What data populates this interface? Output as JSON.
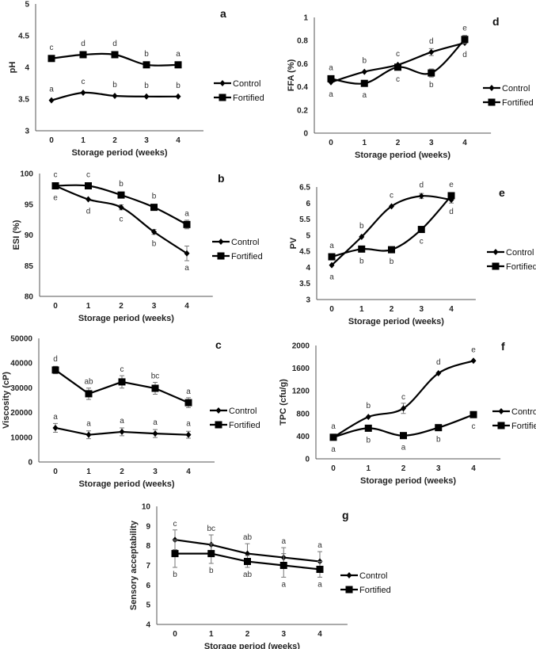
{
  "chart_data": [
    {
      "id": "a",
      "type": "line",
      "panel_label": "a",
      "xlabel": "Storage period (weeks)",
      "ylabel": "pH",
      "x": [
        0,
        1,
        2,
        3,
        4
      ],
      "ylim": [
        3,
        5
      ],
      "yticks": [
        3,
        3.5,
        4,
        4.5,
        5
      ],
      "grid": false,
      "legend": "right",
      "series": [
        {
          "name": "Control",
          "marker": "diamond",
          "values": [
            3.48,
            3.6,
            3.55,
            3.54,
            3.54
          ],
          "errors": [
            0,
            0,
            0,
            0,
            0
          ],
          "letters": [
            "a",
            "c",
            "b",
            "b",
            "b"
          ],
          "letter_pos": [
            "above",
            "above",
            "above",
            "above",
            "above"
          ]
        },
        {
          "name": "Fortified",
          "marker": "square",
          "values": [
            4.14,
            4.2,
            4.2,
            4.04,
            4.04
          ],
          "errors": [
            0,
            0,
            0,
            0,
            0
          ],
          "letters": [
            "c",
            "d",
            "d",
            "b",
            "a"
          ],
          "letter_pos": [
            "above",
            "above",
            "above",
            "above",
            "above"
          ]
        }
      ]
    },
    {
      "id": "b",
      "type": "line",
      "panel_label": "b",
      "xlabel": "Storage period (weeks)",
      "ylabel": "ESI (%)",
      "x": [
        0,
        1,
        2,
        3,
        4
      ],
      "ylim": [
        80,
        100
      ],
      "yticks": [
        80,
        85,
        90,
        95,
        100
      ],
      "grid": false,
      "legend": "right",
      "series": [
        {
          "name": "Control",
          "marker": "diamond",
          "values": [
            98,
            95.8,
            94.5,
            90.5,
            87
          ],
          "errors": [
            0,
            0,
            0.4,
            0.4,
            1.2
          ],
          "letters": [
            "e",
            "d",
            "c",
            "b",
            "a"
          ],
          "letter_pos": [
            "below",
            "below",
            "below",
            "below",
            "below"
          ]
        },
        {
          "name": "Fortified",
          "marker": "square",
          "values": [
            98,
            98,
            96.5,
            94.5,
            91.7
          ],
          "errors": [
            0,
            0,
            0,
            0,
            0.7
          ],
          "letters": [
            "c",
            "c",
            "b",
            "b",
            "a"
          ],
          "letter_pos": [
            "above",
            "above",
            "above",
            "above",
            "above"
          ]
        }
      ]
    },
    {
      "id": "c",
      "type": "line",
      "panel_label": "c",
      "xlabel": "Storage period (weeks)",
      "ylabel": "Viscosity (cP)",
      "x": [
        0,
        1,
        2,
        3,
        4
      ],
      "ylim": [
        0,
        50000
      ],
      "yticks": [
        0,
        10000,
        20000,
        30000,
        40000,
        50000
      ],
      "grid": false,
      "legend": "right",
      "series": [
        {
          "name": "Control",
          "marker": "diamond",
          "values": [
            13800,
            11000,
            12200,
            11500,
            11000
          ],
          "errors": [
            1800,
            1600,
            1600,
            1600,
            1400
          ],
          "letters": [
            "a",
            "a",
            "a",
            "a",
            "a"
          ],
          "letter_pos": [
            "above",
            "above",
            "above",
            "above",
            "above"
          ]
        },
        {
          "name": "Fortified",
          "marker": "square",
          "values": [
            37200,
            27600,
            32400,
            29800,
            24000
          ],
          "errors": [
            1500,
            2300,
            2500,
            2400,
            2000
          ],
          "letters": [
            "d",
            "ab",
            "c",
            "bc",
            "a"
          ],
          "letter_pos": [
            "above",
            "above",
            "above",
            "above",
            "above"
          ]
        }
      ]
    },
    {
      "id": "d",
      "type": "line",
      "panel_label": "d",
      "xlabel": "Storage period (weeks)",
      "ylabel": "FFA (%)",
      "x": [
        0,
        1,
        2,
        3,
        4
      ],
      "ylim": [
        0,
        1
      ],
      "yticks": [
        0,
        0.2,
        0.4,
        0.6,
        0.8,
        1
      ],
      "grid": false,
      "legend": "right",
      "series": [
        {
          "name": "Control",
          "marker": "diamond",
          "values": [
            0.44,
            0.53,
            0.59,
            0.7,
            0.78
          ],
          "errors": [
            0,
            0,
            0,
            0.03,
            0
          ],
          "letters": [
            "a",
            "b",
            "c",
            "d",
            "d"
          ],
          "letter_pos": [
            "below",
            "above",
            "above",
            "above",
            "below"
          ]
        },
        {
          "name": "Fortified",
          "marker": "square",
          "values": [
            0.47,
            0.43,
            0.57,
            0.52,
            0.81
          ],
          "errors": [
            0,
            0,
            0,
            0.035,
            0.035
          ],
          "letters": [
            "a",
            "a",
            "c",
            "b",
            "e"
          ],
          "letter_pos": [
            "above",
            "below",
            "below",
            "below",
            "above"
          ]
        }
      ]
    },
    {
      "id": "e",
      "type": "line",
      "panel_label": "e",
      "xlabel": "Storage period (weeks)",
      "ylabel": "PV",
      "x": [
        0,
        1,
        2,
        3,
        4
      ],
      "ylim": [
        3,
        6.5
      ],
      "yticks": [
        3,
        3.5,
        4,
        4.5,
        5,
        5.5,
        6,
        6.5
      ],
      "grid": false,
      "legend": "right",
      "series": [
        {
          "name": "Control",
          "marker": "diamond",
          "values": [
            4.07,
            4.95,
            5.9,
            6.22,
            6.1
          ],
          "errors": [
            0,
            0,
            0,
            0.08,
            0.1
          ],
          "letters": [
            "a",
            "b",
            "c",
            "d",
            "d"
          ],
          "letter_pos": [
            "below",
            "above",
            "above",
            "above",
            "below"
          ]
        },
        {
          "name": "Fortified",
          "marker": "square",
          "values": [
            4.33,
            4.57,
            4.55,
            5.18,
            6.23
          ],
          "errors": [
            0,
            0,
            0,
            0,
            0
          ],
          "letters": [
            "a",
            "b",
            "b",
            "c",
            "e"
          ],
          "letter_pos": [
            "above",
            "below",
            "below",
            "below",
            "above"
          ]
        }
      ]
    },
    {
      "id": "f",
      "type": "line",
      "panel_label": "f",
      "xlabel": "Storage period (weeks)",
      "ylabel": "TPC (cfu/g)",
      "x": [
        0,
        1,
        2,
        3,
        4
      ],
      "ylim": [
        0,
        2000
      ],
      "yticks": [
        0,
        400,
        800,
        1200,
        1600,
        2000
      ],
      "grid": false,
      "legend": "right",
      "series": [
        {
          "name": "Control",
          "marker": "diamond",
          "values": [
            380,
            740,
            890,
            1510,
            1730
          ],
          "errors": [
            0,
            0,
            90,
            0,
            0
          ],
          "letters": [
            "a",
            "b",
            "c",
            "d",
            "e"
          ],
          "letter_pos": [
            "above",
            "above",
            "above",
            "above",
            "above"
          ]
        },
        {
          "name": "Fortified",
          "marker": "square",
          "values": [
            380,
            540,
            410,
            550,
            780
          ],
          "errors": [
            0,
            0,
            0,
            0,
            0
          ],
          "letters": [
            "a",
            "b",
            "a",
            "b",
            "c"
          ],
          "letter_pos": [
            "below",
            "below",
            "below",
            "below",
            "below"
          ]
        }
      ]
    },
    {
      "id": "g",
      "type": "line",
      "panel_label": "g",
      "xlabel": "Storage period (weeks)",
      "ylabel": "Sensory acceptability",
      "x": [
        0,
        1,
        2,
        3,
        4
      ],
      "ylim": [
        4,
        10
      ],
      "yticks": [
        4,
        5,
        6,
        7,
        8,
        9,
        10
      ],
      "grid": false,
      "legend": "right",
      "series": [
        {
          "name": "Control",
          "marker": "diamond",
          "values": [
            8.3,
            8.05,
            7.6,
            7.4,
            7.2
          ],
          "errors": [
            0.5,
            0.5,
            0.5,
            0.5,
            0.5
          ],
          "letters": [
            "c",
            "bc",
            "ab",
            "a",
            "a"
          ],
          "letter_pos": [
            "above",
            "above",
            "above",
            "above",
            "above"
          ]
        },
        {
          "name": "Fortified",
          "marker": "square",
          "values": [
            7.6,
            7.6,
            7.2,
            7.0,
            6.8
          ],
          "errors": [
            0.7,
            0.5,
            0.3,
            0.6,
            0.4
          ],
          "letters": [
            "b",
            "b",
            "ab",
            "a",
            "a"
          ],
          "letter_pos": [
            "below",
            "below",
            "below",
            "below",
            "below"
          ]
        }
      ]
    }
  ]
}
